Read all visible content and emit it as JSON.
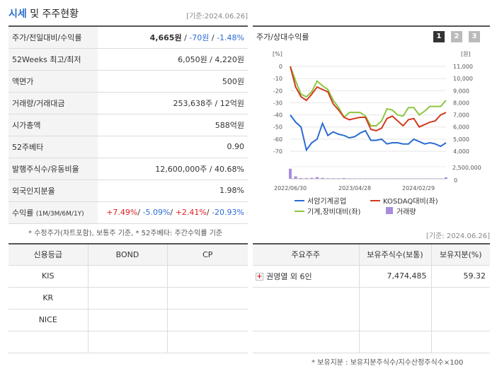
{
  "title": {
    "main": "시세",
    "rest": " 및 주주현황"
  },
  "as_of_1": "[기준:2024.06.26]",
  "quote_rows": [
    {
      "label": "주가/전일대비/수익률"
    },
    {
      "label": "52Weeks 최고/최저",
      "value": "6,050원 / 4,220원"
    },
    {
      "label": "액면가",
      "value": "500원"
    },
    {
      "label": "거래량/거래대금",
      "value": "253,638주 / 12억원"
    },
    {
      "label": "시가총액",
      "value": "588억원"
    },
    {
      "label": "52주베타",
      "value": "0.90"
    },
    {
      "label": "발행주식수/유동비율",
      "value": "12,600,000주 / 40.68%"
    },
    {
      "label": "외국인지분율",
      "value": "1.98%"
    },
    {
      "label": "수익률",
      "label_sub": "(1M/3M/6M/1Y)"
    }
  ],
  "price": {
    "now": "4,665원",
    "sep1": " / ",
    "diff": "-70원",
    "sep2": " / ",
    "rate": "-1.48%"
  },
  "returns": {
    "r1m": "+7.49%",
    "r3m": "-5.09%",
    "r6m": "+2.41%",
    "r1y": "-20.93%",
    "sep": "/ "
  },
  "note_1": "* 수정주가(차트포함), 보통주 기준, * 52주베타: 주간수익률 기준",
  "as_of_2": "[기준: 2024.06.26]",
  "chart": {
    "title": "주가/상대수익률",
    "pages": [
      "1",
      "2",
      "3"
    ],
    "left_unit": "[%]",
    "right_unit": "[원]",
    "left_ticks": [
      "0",
      "-10",
      "-20",
      "-30",
      "-40",
      "-50",
      "-60",
      "-70"
    ],
    "right_ticks": [
      "11,000",
      "10,000",
      "9,000",
      "8,000",
      "7,000",
      "6,000",
      "5,000",
      "4,000"
    ],
    "vol_tick": "2,500,000",
    "vol_zero": "0",
    "x_ticks": [
      "2022/06/30",
      "2023/04/28",
      "2024/02/29"
    ],
    "legend": [
      "서암기계공업",
      "KOSDAQ대비(좌)",
      "기계,장비대비(좌)",
      "거래량"
    ],
    "colors": {
      "price": "#2b6cd2",
      "kosdaq": "#d23a1e",
      "sector": "#8cc63f",
      "volume": "#a98ce0"
    }
  },
  "chart_data": {
    "type": "line",
    "x_ticks": [
      "2022/06/30",
      "2023/04/28",
      "2024/02/29"
    ],
    "left_axis": {
      "unit": "%",
      "range": [
        -70,
        0
      ]
    },
    "right_axis": {
      "unit": "원",
      "range": [
        4000,
        11000
      ]
    },
    "series": [
      {
        "name": "서암기계공업",
        "axis": "right",
        "values": [
          7000,
          6400,
          6000,
          4100,
          4700,
          5000,
          6300,
          5300,
          5600,
          5400,
          5300,
          5100,
          5200,
          5500,
          5700,
          4900,
          4900,
          5000,
          4600,
          4700,
          4700,
          4600,
          4600,
          5000,
          4800,
          4600,
          4700,
          4600,
          4400,
          4700
        ]
      },
      {
        "name": "KOSDAQ대비(좌)",
        "axis": "left",
        "values": [
          0,
          -17,
          -25,
          -28,
          -23,
          -17,
          -19,
          -21,
          -31,
          -36,
          -42,
          -44,
          -43,
          -42,
          -42,
          -52,
          -53,
          -51,
          -43,
          -41,
          -45,
          -49,
          -44,
          -43,
          -50,
          -48,
          -46,
          -45,
          -40,
          -38
        ]
      },
      {
        "name": "기계,장비대비(좌)",
        "axis": "left",
        "values": [
          0,
          -12,
          -23,
          -25,
          -21,
          -12,
          -16,
          -19,
          -28,
          -34,
          -42,
          -38,
          -38,
          -38,
          -41,
          -49,
          -49,
          -45,
          -35,
          -36,
          -40,
          -41,
          -34,
          -34,
          -40,
          -37,
          -33,
          -33,
          -33,
          -28
        ]
      },
      {
        "name": "거래량",
        "axis": "volume",
        "values": [
          2100000,
          500000,
          150000,
          150000,
          200000,
          350000,
          200000,
          100000,
          100000,
          100000,
          150000,
          60000,
          60000,
          60000,
          60000,
          60000,
          60000,
          60000,
          60000,
          60000,
          60000,
          60000,
          60000,
          60000,
          60000,
          60000,
          60000,
          60000,
          60000,
          300000
        ]
      }
    ]
  },
  "credit": {
    "headers": [
      "신용등급",
      "BOND",
      "CP"
    ],
    "rows": [
      "KIS",
      "KR",
      "NICE",
      ""
    ]
  },
  "holders": {
    "headers": [
      "주요주주",
      "보유주식수(보통)",
      "보유지분(%)"
    ],
    "rows": [
      {
        "name": "권영열 외 6인",
        "shares": "7,474,485",
        "pct": "59.32"
      }
    ]
  },
  "note_2": "* 보유지분 : 보유지분주식수/지수산정주식수×100"
}
